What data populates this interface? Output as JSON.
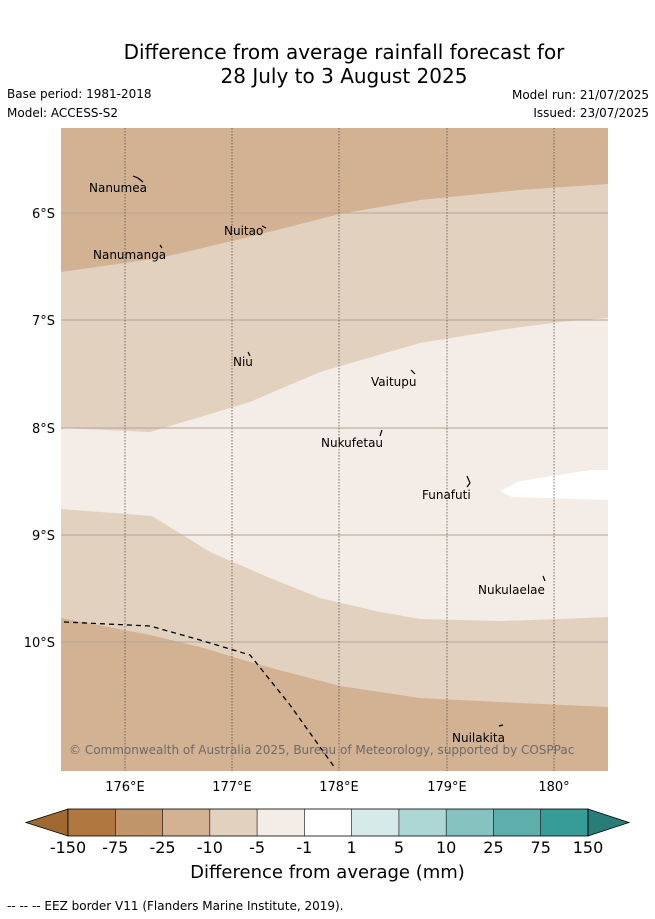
{
  "header": {
    "title_line1": "Difference from average rainfall forecast for",
    "title_line2": "28 July to 3 August 2025",
    "base_period": "Base period: 1981-2018",
    "model": "Model: ACCESS-S2",
    "model_run": "Model run: 21/07/2025",
    "issued": "Issued: 23/07/2025"
  },
  "map": {
    "lon_ticks": [
      "176°E",
      "177°E",
      "178°E",
      "179°E",
      "180°"
    ],
    "lat_ticks": [
      "6°S",
      "7°S",
      "8°S",
      "9°S",
      "10°S"
    ],
    "islands": [
      {
        "name": "Nanumea"
      },
      {
        "name": "Nuitao"
      },
      {
        "name": "Nanumanga"
      },
      {
        "name": "Niu"
      },
      {
        "name": "Vaitupu"
      },
      {
        "name": "Nukufetau"
      },
      {
        "name": "Funafuti"
      },
      {
        "name": "Nukulaelae"
      },
      {
        "name": "Nuilakita"
      }
    ],
    "copyright": "© Commonwealth of Australia 2025, Bureau of Meteorology, supported by COSPPac",
    "band_colors": {
      "minus25_to_minus10": "#d2b293",
      "minus10_to_minus5": "#e3d1c0",
      "minus5_to_minus1": "#f4ece6",
      "minus1_to_1": "#ffffff"
    }
  },
  "colorbar": {
    "labels": [
      "-150",
      "-75",
      "-25",
      "-10",
      "-5",
      "-1",
      "1",
      "5",
      "10",
      "25",
      "75",
      "150"
    ],
    "colors": [
      "#b07840",
      "#c0956a",
      "#d2b293",
      "#e3d1c0",
      "#f4ece6",
      "#ffffff",
      "#d6ebe9",
      "#add7d5",
      "#86c2c0",
      "#5eaeab",
      "#379b97"
    ],
    "under_color": "#a06832",
    "over_color": "#2a7c78",
    "title": "Difference from average (mm)"
  },
  "footnote": "-- -- -- EEZ border V11 (Flanders Marine Institute, 2019)."
}
